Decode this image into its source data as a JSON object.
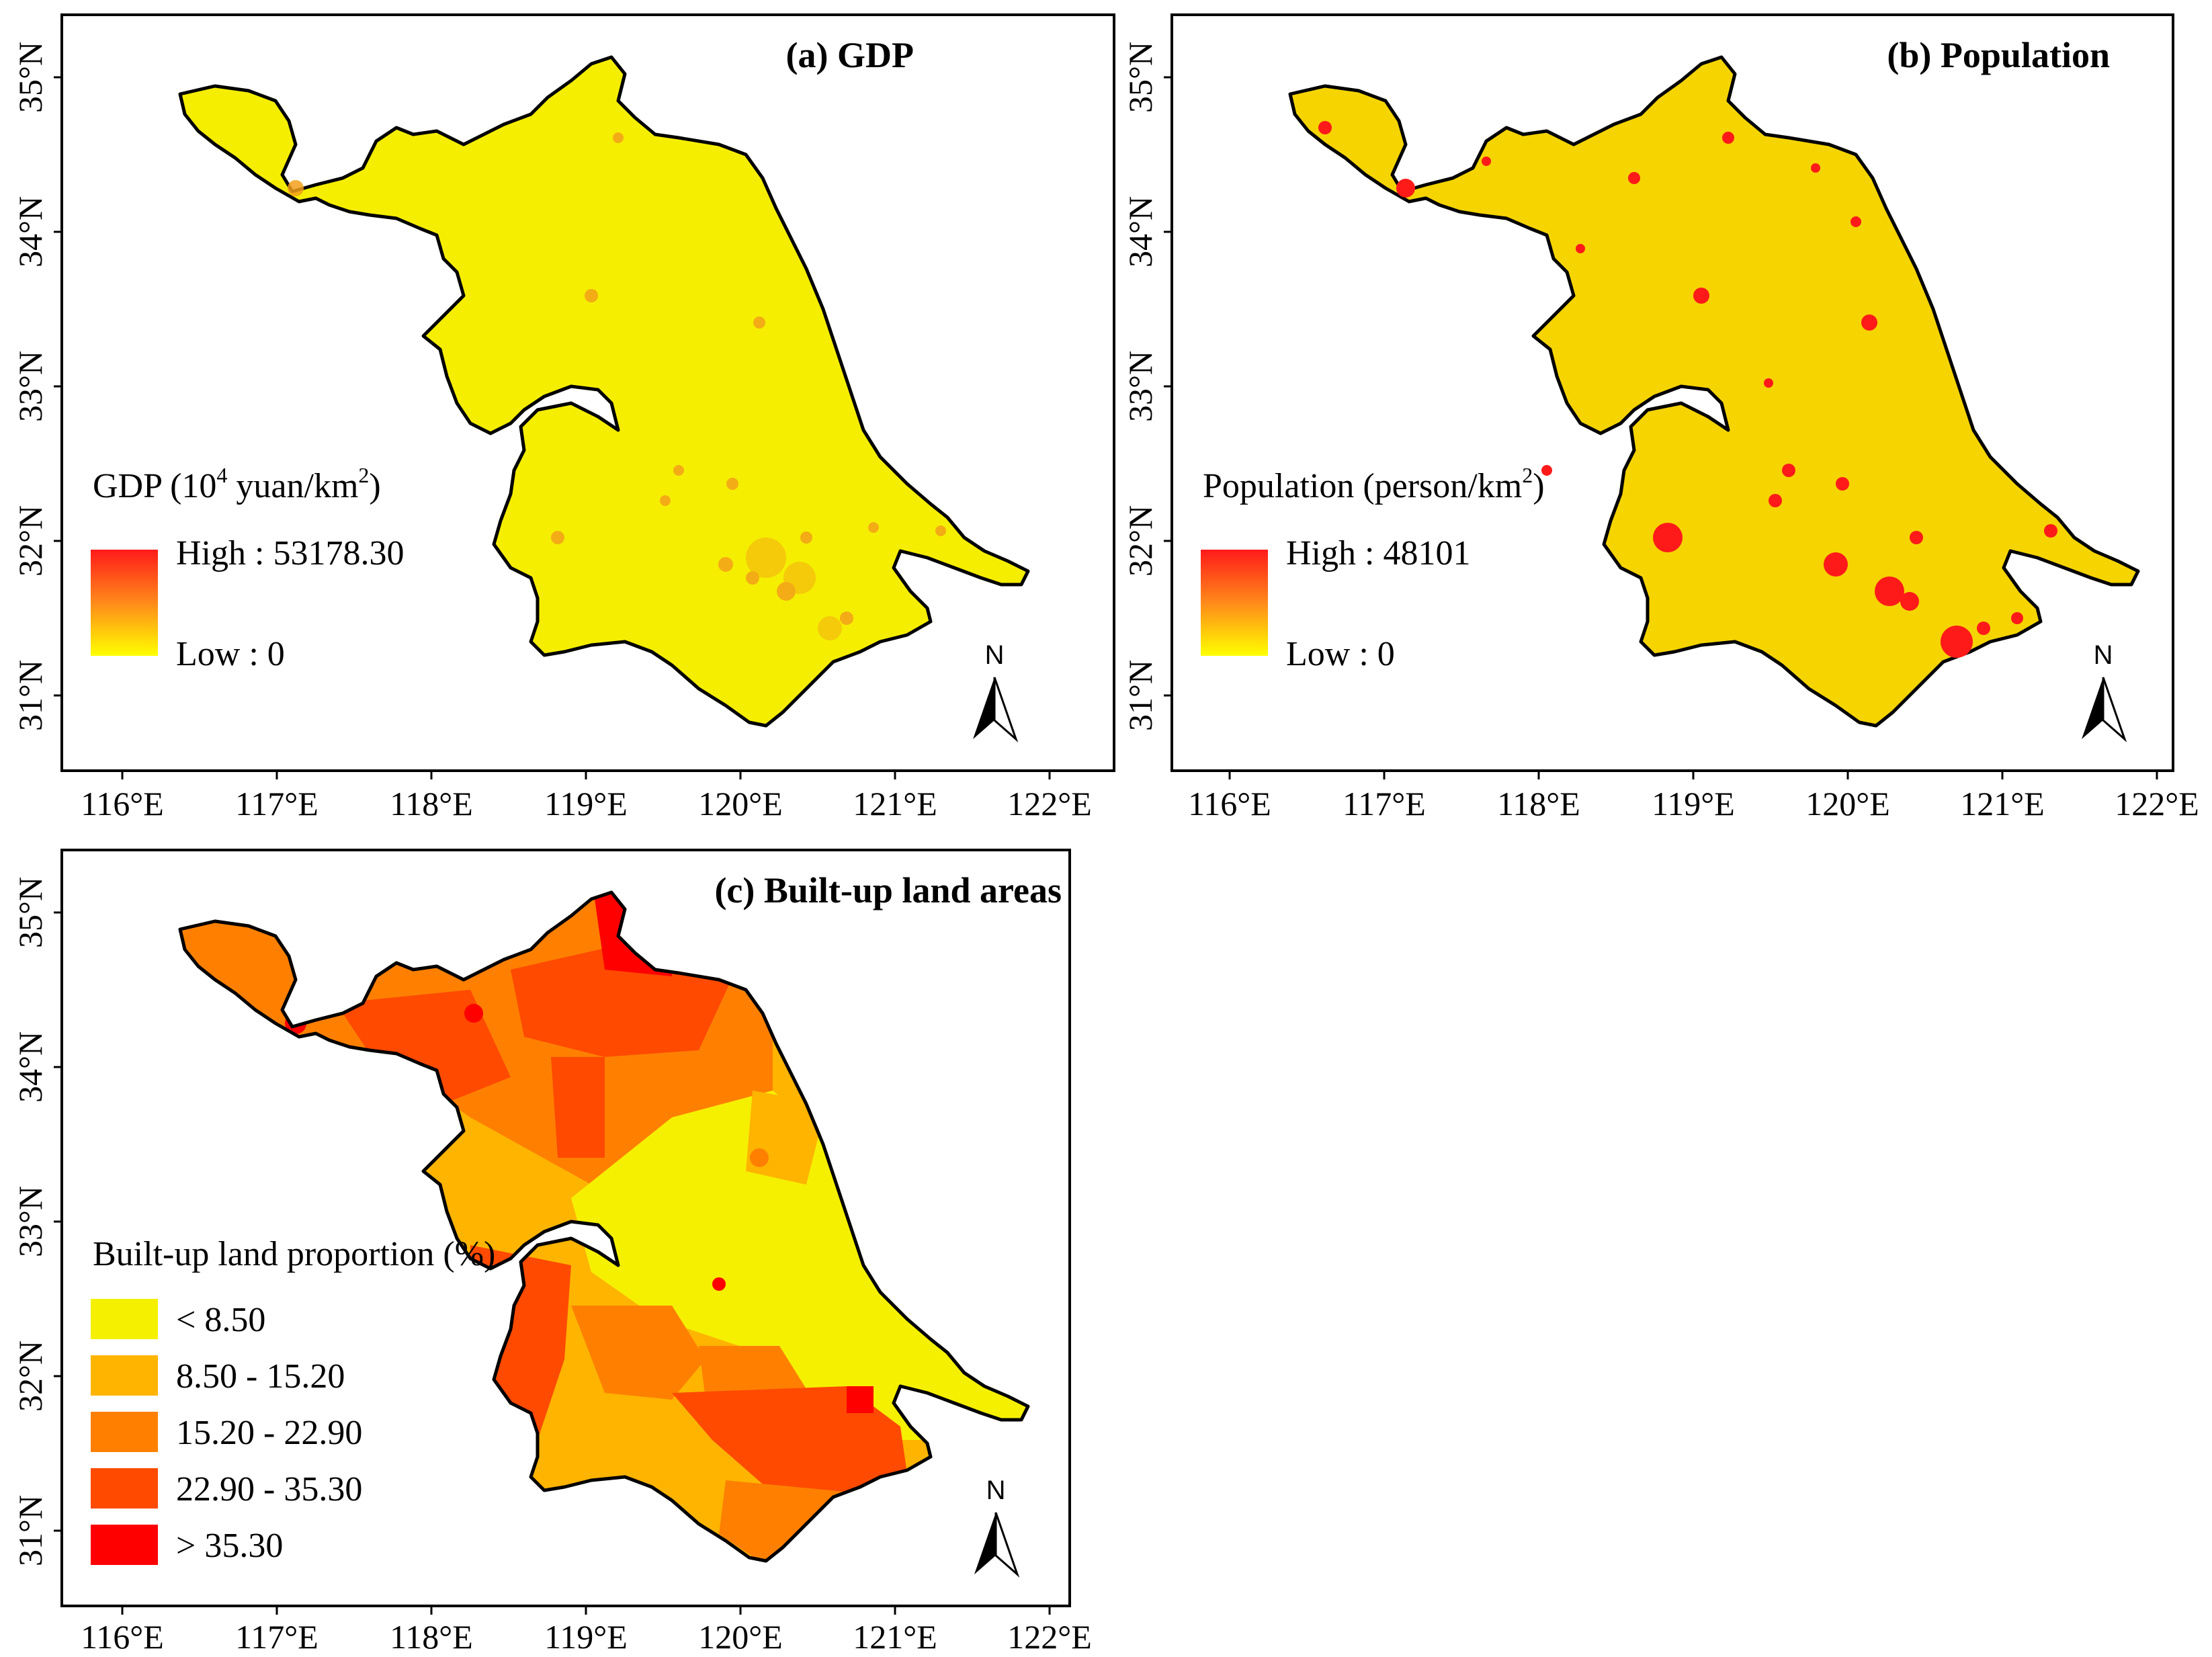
{
  "axes": {
    "lon_labels": [
      "116°E",
      "117°E",
      "118°E",
      "119°E",
      "120°E",
      "121°E",
      "122°E"
    ],
    "lat_labels": [
      "35°N",
      "34°N",
      "33°N",
      "32°N",
      "31°N"
    ]
  },
  "panels": {
    "gdp": {
      "title": "(a) GDP",
      "legend_title_prefix": "GDP (10",
      "legend_title_sup": "4",
      "legend_title_mid": " yuan/km",
      "legend_title_sup2": "2",
      "legend_title_suffix": ")",
      "high_label": "High : 53178.30",
      "low_label": "Low : 0",
      "high_value": 53178.3,
      "low_value": 0
    },
    "population": {
      "title": "(b) Population",
      "legend_title_prefix": "Population (person/km",
      "legend_title_sup": "2",
      "legend_title_suffix": ")",
      "high_label": "High : 48101",
      "low_label": "Low : 0",
      "high_value": 48101,
      "low_value": 0
    },
    "builtup": {
      "title": "(c) Built-up land areas",
      "legend_title": "Built-up land proportion (%)",
      "classes": [
        {
          "label": "< 8.50",
          "color": "#f5f000"
        },
        {
          "label": "8.50 - 15.20",
          "color": "#ffb400"
        },
        {
          "label": "15.20 - 22.90",
          "color": "#ff8000"
        },
        {
          "label": "22.90 - 35.30",
          "color": "#ff4a00"
        },
        {
          "label": "> 35.30",
          "color": "#ff0000"
        }
      ]
    }
  },
  "north_arrow": "N",
  "colors": {
    "ramp_high": "#ff1a1a",
    "ramp_low": "#ffff00",
    "map_base": "#f5ee00"
  }
}
